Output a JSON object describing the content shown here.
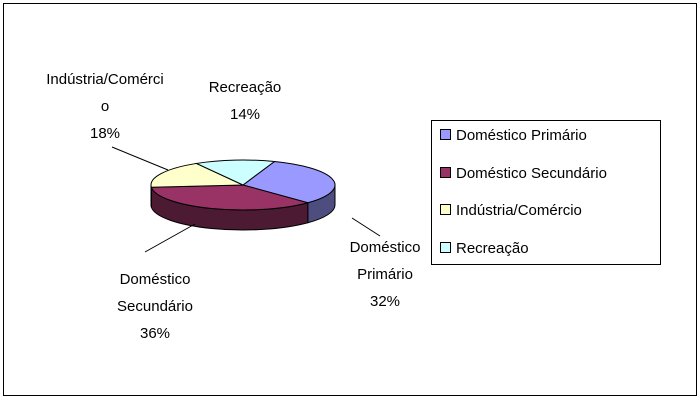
{
  "chart_data": {
    "type": "pie",
    "categories": [
      "Doméstico Primário",
      "Doméstico Secundário",
      "Indústria/Comércio",
      "Recreação"
    ],
    "values": [
      32,
      36,
      18,
      14
    ],
    "value_labels": [
      "32%",
      "36%",
      "18%",
      "14%"
    ],
    "colors": [
      "#9999ff",
      "#993366",
      "#ffffcc",
      "#ccffff"
    ],
    "legend": "right"
  }
}
